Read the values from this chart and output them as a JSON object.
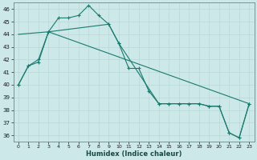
{
  "xlabel": "Humidex (Indice chaleur)",
  "ylabel": "",
  "bg_color": "#cce8e8",
  "line_color": "#1a7a6e",
  "grid_color": "#b8d8d8",
  "xlim": [
    -0.5,
    23.5
  ],
  "ylim": [
    35.5,
    46.5
  ],
  "yticks": [
    36,
    37,
    38,
    39,
    40,
    41,
    42,
    43,
    44,
    45,
    46
  ],
  "xticks": [
    0,
    1,
    2,
    3,
    4,
    5,
    6,
    7,
    8,
    9,
    10,
    11,
    12,
    13,
    14,
    15,
    16,
    17,
    18,
    19,
    20,
    21,
    22,
    23
  ],
  "line1_x": [
    0,
    1,
    2,
    3,
    4,
    5,
    6,
    7,
    8,
    9,
    10,
    11,
    12,
    13,
    14,
    15,
    16,
    17,
    18,
    19,
    20,
    21,
    22,
    23
  ],
  "line1_y": [
    40.0,
    41.5,
    41.8,
    44.2,
    45.3,
    45.3,
    45.5,
    46.3,
    45.5,
    44.8,
    43.3,
    41.3,
    41.3,
    39.5,
    38.5,
    38.5,
    38.5,
    38.5,
    38.5,
    38.3,
    38.3,
    36.2,
    35.8,
    38.5
  ],
  "line2_x": [
    0,
    1,
    2,
    3,
    9,
    10,
    14,
    15,
    16,
    17,
    18,
    19,
    20,
    21,
    22,
    23
  ],
  "line2_y": [
    40.0,
    41.5,
    42.0,
    44.2,
    44.8,
    43.3,
    38.5,
    38.5,
    38.5,
    38.5,
    38.5,
    38.3,
    38.3,
    36.2,
    35.8,
    38.5
  ],
  "line3_x": [
    0,
    3,
    23
  ],
  "line3_y": [
    44.0,
    44.2,
    38.5
  ]
}
